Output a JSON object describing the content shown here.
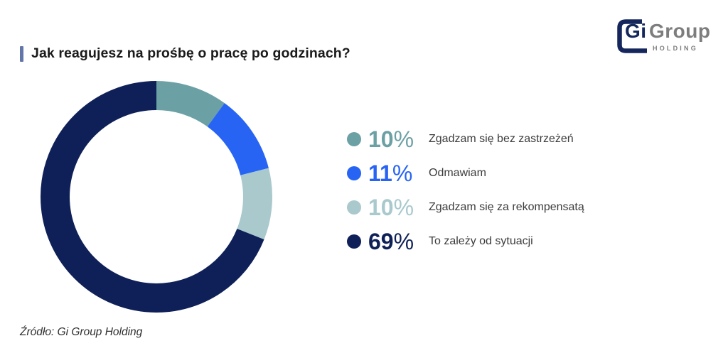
{
  "header": {
    "title": "Jak reagujesz na prośbę o pracę po godzinach?",
    "accent_color": "#6276a9"
  },
  "logo": {
    "text_primary": "Gi",
    "text_secondary": "Group",
    "text_sub": "HOLDING",
    "navy": "#14265b",
    "gray": "#7d7d7d"
  },
  "chart_data": {
    "type": "pie",
    "subtype": "donut",
    "title": "Jak reagujesz na prośbę o pracę po godzinach?",
    "start_angle_deg": 0,
    "direction": "clockwise",
    "percent_sign": "%",
    "legend_position": "right",
    "segments": [
      {
        "label": "Zgadzam się bez zastrzeżeń",
        "value": 10,
        "color": "#6ba0a5"
      },
      {
        "label": "Odmawiam",
        "value": 11,
        "color": "#2764f4"
      },
      {
        "label": "Zgadzam się za rekompensatą",
        "value": 10,
        "color": "#a9c9cd"
      },
      {
        "label": "To zależy od sytuacji",
        "value": 69,
        "color": "#0e2057"
      }
    ]
  },
  "footer": {
    "source": "Źródło: Gi Group Holding"
  }
}
